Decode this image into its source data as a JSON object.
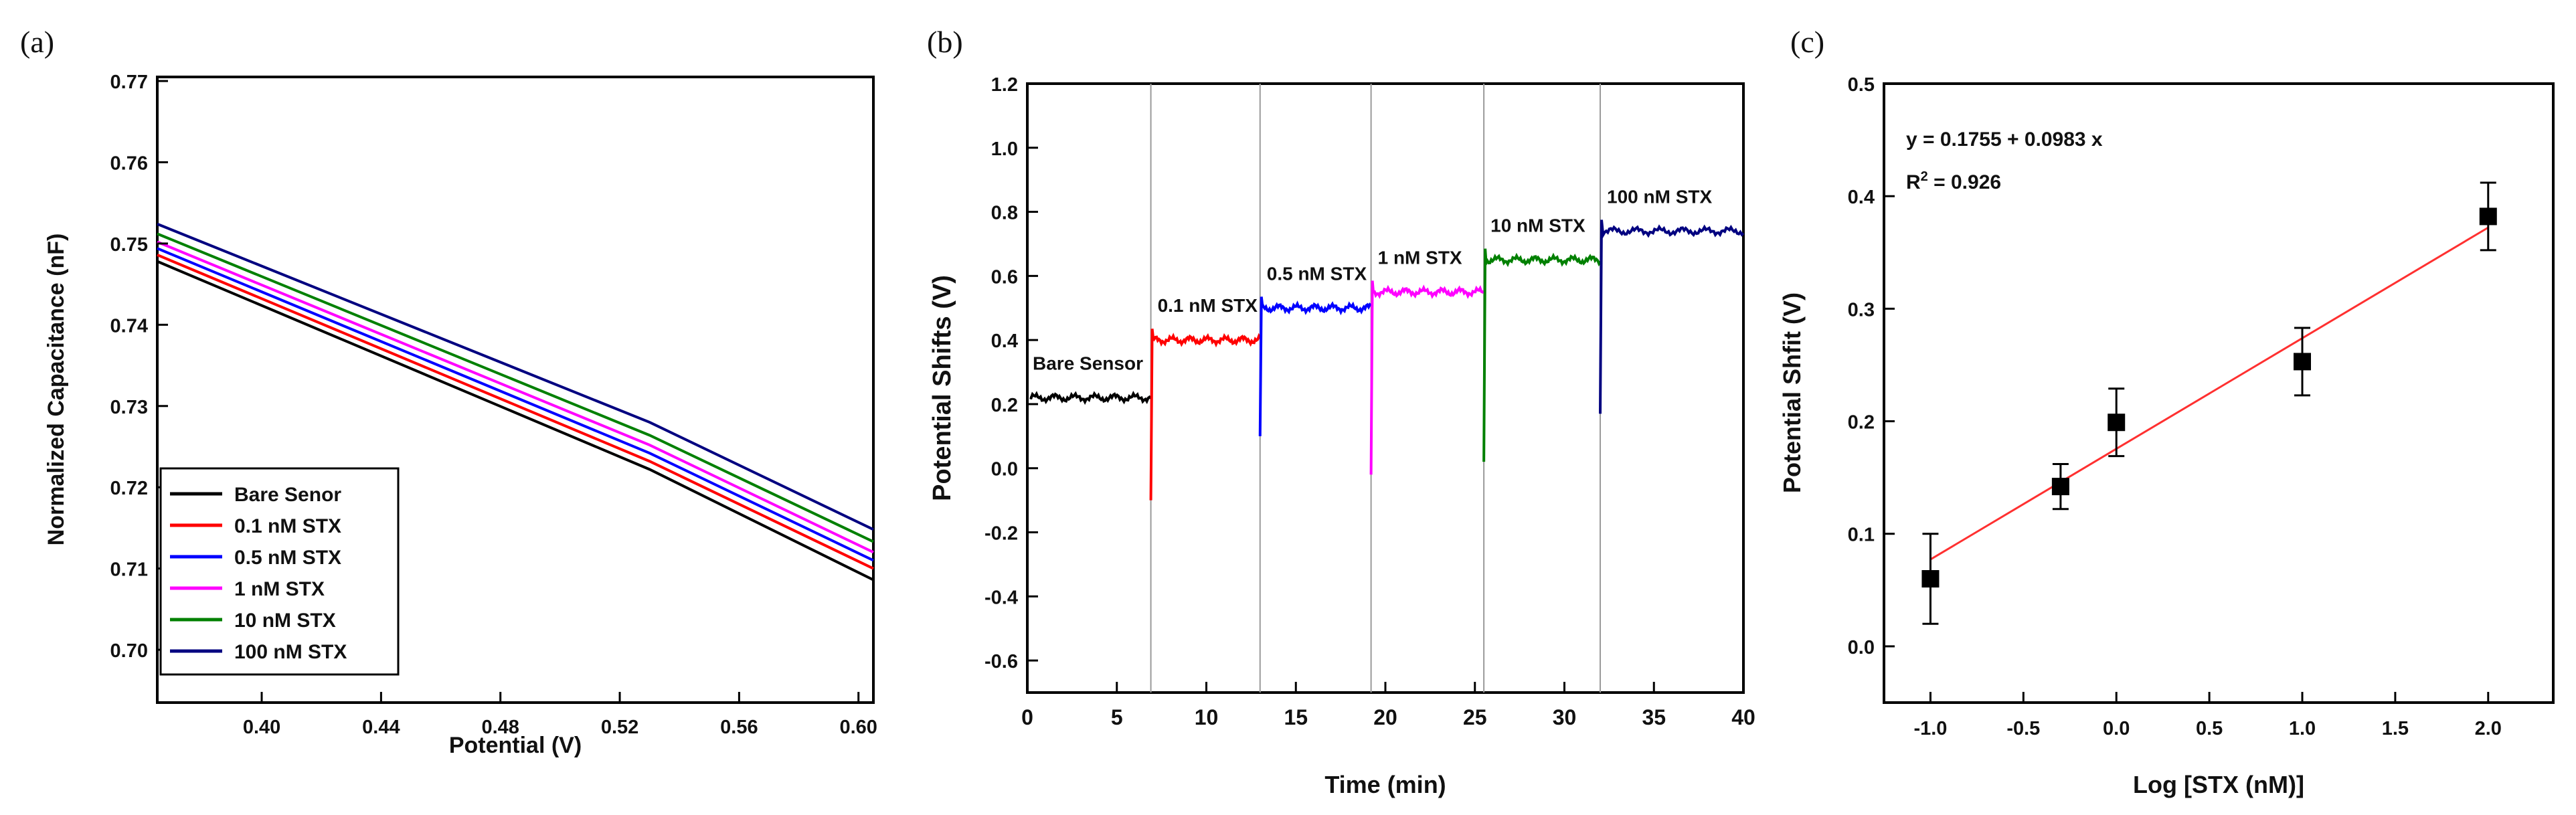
{
  "panels": [
    {
      "label": "(a)",
      "type": "line",
      "xlabel": "Potential (V)",
      "ylabel": "Normalized Capacitance (nF)",
      "xlim": [
        0.365,
        0.605
      ],
      "ylim": [
        0.6935,
        0.7705
      ],
      "xticks": [
        0.4,
        0.44,
        0.48,
        0.52,
        0.56,
        0.6
      ],
      "yticks": [
        0.7,
        0.71,
        0.72,
        0.73,
        0.74,
        0.75,
        0.76,
        0.77
      ],
      "legend_position": "bottom-left",
      "series": [
        {
          "name": "Bare Senor",
          "color": "#000000",
          "x": [
            0.365,
            0.53,
            0.605
          ],
          "y": [
            0.7478,
            0.7222,
            0.7086
          ]
        },
        {
          "name": "0.1 nM STX",
          "color": "#ff0000",
          "x": [
            0.365,
            0.53,
            0.605
          ],
          "y": [
            0.7486,
            0.7232,
            0.71
          ]
        },
        {
          "name": "0.5 nM STX",
          "color": "#0000ff",
          "x": [
            0.365,
            0.53,
            0.605
          ],
          "y": [
            0.7494,
            0.7242,
            0.711
          ]
        },
        {
          "name": "1 nM STX",
          "color": "#ff00ff",
          "x": [
            0.365,
            0.53,
            0.605
          ],
          "y": [
            0.7502,
            0.7252,
            0.712
          ]
        },
        {
          "name": "10 nM STX",
          "color": "#008000",
          "x": [
            0.365,
            0.53,
            0.605
          ],
          "y": [
            0.7512,
            0.7264,
            0.7133
          ]
        },
        {
          "name": "100 nM STX",
          "color": "#000080",
          "x": [
            0.365,
            0.53,
            0.605
          ],
          "y": [
            0.7524,
            0.728,
            0.7148
          ]
        }
      ]
    },
    {
      "label": "(b)",
      "type": "line",
      "xlabel": "Time (min)",
      "ylabel": "Potential Shifts (V)",
      "xlim": [
        0,
        40
      ],
      "ylim": [
        -0.7,
        1.2
      ],
      "xticks": [
        0,
        5,
        10,
        15,
        20,
        25,
        30,
        35,
        40
      ],
      "yticks": [
        -0.6,
        -0.4,
        -0.2,
        0.0,
        0.2,
        0.4,
        0.6,
        0.8,
        1.0,
        1.2
      ],
      "vlines": [
        6.9,
        13.0,
        19.2,
        25.5,
        32.0
      ],
      "segments": [
        {
          "name": "Bare Sensor",
          "color": "#000000",
          "t0": 0,
          "t1": 6.9,
          "level": 0.22,
          "spike": null
        },
        {
          "name": "0.1 nM STX",
          "color": "#ff0000",
          "t0": 6.9,
          "t1": 13.0,
          "level": 0.4,
          "spike": -0.1
        },
        {
          "name": "0.5 nM STX",
          "color": "#0000ff",
          "t0": 13.0,
          "t1": 19.2,
          "level": 0.5,
          "spike": 0.1
        },
        {
          "name": "1 nM STX",
          "color": "#ff00ff",
          "t0": 19.2,
          "t1": 25.5,
          "level": 0.55,
          "spike": -0.02
        },
        {
          "name": "10 nM STX",
          "color": "#008000",
          "t0": 25.5,
          "t1": 32.0,
          "level": 0.65,
          "spike": 0.02
        },
        {
          "name": "100 nM STX",
          "color": "#000080",
          "t0": 32.0,
          "t1": 40.0,
          "level": 0.74,
          "spike": 0.17
        }
      ]
    },
    {
      "label": "(c)",
      "type": "scatter",
      "xlabel": "Log [STX (nM)]",
      "ylabel": "Potential Shfit (V)",
      "xlim": [
        -1.25,
        2.35
      ],
      "ylim": [
        -0.05,
        0.5
      ],
      "xticks": [
        -1.0,
        -0.5,
        0.0,
        0.5,
        1.0,
        1.5,
        2.0
      ],
      "yticks": [
        0.0,
        0.1,
        0.2,
        0.3,
        0.4,
        0.5
      ],
      "x": [
        -1.0,
        -0.3,
        0.0,
        1.0,
        2.0
      ],
      "y": [
        0.06,
        0.142,
        0.199,
        0.253,
        0.382
      ],
      "yerr": [
        0.04,
        0.02,
        0.03,
        0.03,
        0.03
      ],
      "fit": {
        "intercept": 0.1755,
        "slope": 0.0983,
        "x_range": [
          -1.0,
          2.0
        ],
        "color": "#ff3030"
      },
      "equation": "y = 0.1755 + 0.0983 x",
      "r2_prefix": "R",
      "r2_sup": "2",
      "r2_value": " = 0.926"
    }
  ]
}
